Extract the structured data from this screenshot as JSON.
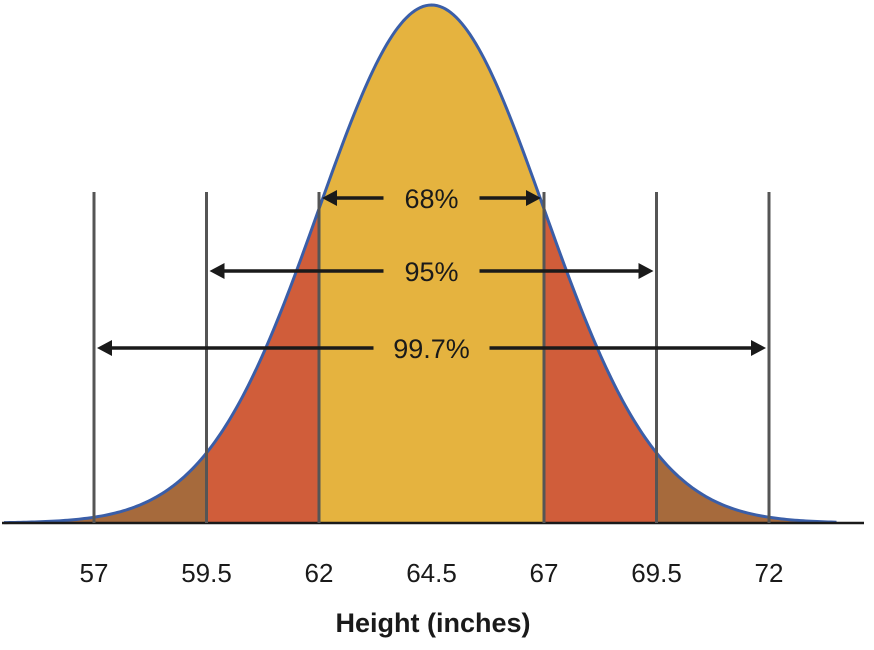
{
  "chart_data": {
    "type": "area",
    "distribution": "normal",
    "mean": 64.5,
    "sd": 2.5,
    "xlabel": "Height (inches)",
    "xlim": [
      55,
      73.5
    ],
    "x_ticks": [
      57,
      59.5,
      62,
      64.5,
      67,
      69.5,
      72
    ],
    "x_tick_labels": [
      "57",
      "59.5",
      "62",
      "64.5",
      "67",
      "69.5",
      "72"
    ],
    "reference_lines": [
      57,
      59.5,
      62,
      67,
      69.5,
      72
    ],
    "regions": [
      {
        "from": 62,
        "to": 67,
        "color": "#e5b33f"
      },
      {
        "from": 59.5,
        "to": 62,
        "color": "#d05d3a"
      },
      {
        "from": 67,
        "to": 69.5,
        "color": "#d05d3a"
      },
      {
        "from": 55,
        "to": 59.5,
        "color": "#a66a3c"
      },
      {
        "from": 69.5,
        "to": 73.5,
        "color": "#a66a3c"
      }
    ],
    "ranges": [
      {
        "label": "68%",
        "from": 62,
        "to": 67
      },
      {
        "label": "95%",
        "from": 59.5,
        "to": 69.5
      },
      {
        "label": "99.7%",
        "from": 57,
        "to": 72
      }
    ],
    "colors": {
      "curve": "#3a5ea8",
      "reference_line": "#555555",
      "arrow": "#1a1a1a",
      "axis": "#1a1a1a"
    }
  }
}
